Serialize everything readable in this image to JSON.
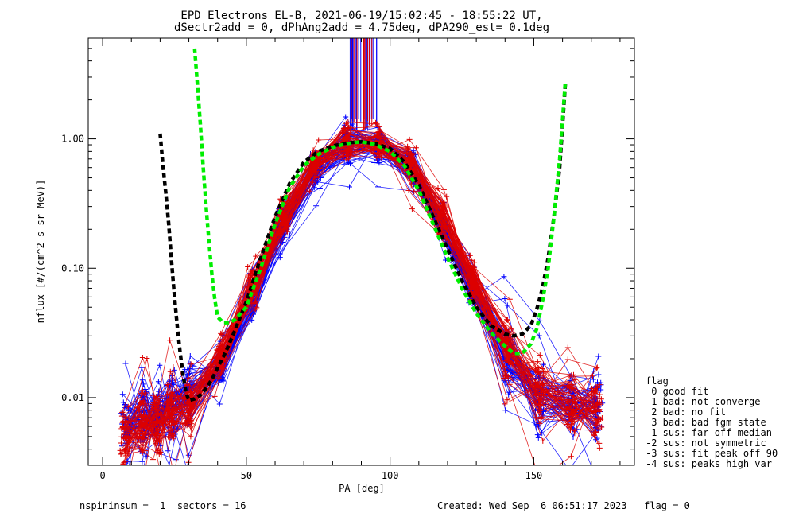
{
  "chart_data": {
    "type": "line",
    "title": "EPD Electrons EL-B, 2021-06-19/15:02:45 - 18:55:22 UT,",
    "subtitle": "dSectr2add = 0, dPhAng2add = 4.75deg, dPA290_est=   0.1deg",
    "xlabel": "PA [deg]",
    "ylabel": "nflux [#/(cm^2 s sr MeV)]",
    "xlim": [
      -5,
      185
    ],
    "ylim": [
      0.003,
      6.0
    ],
    "yscale": "log",
    "x_ticks": [
      0,
      50,
      100,
      150
    ],
    "x_tick_labels": [
      "0",
      "50",
      "100",
      "150"
    ],
    "y_ticks": [
      0.01,
      0.1,
      1.0
    ],
    "y_tick_labels": [
      "0.01",
      "0.10",
      "1.00"
    ],
    "colors": {
      "red": "#dd0000",
      "blue": "#0000ff",
      "black": "#000000",
      "green": "#00ee00"
    },
    "series": [
      {
        "color": "blue",
        "marker": "plus",
        "style": "thin",
        "profile": {
          "x": [
            8,
            14,
            19,
            24,
            30,
            41,
            52,
            63,
            74,
            85,
            96,
            107,
            118,
            129,
            141,
            152,
            163,
            172
          ],
          "y": [
            0.0055,
            0.0068,
            0.0072,
            0.0085,
            0.0105,
            0.018,
            0.06,
            0.22,
            0.6,
            0.9,
            0.9,
            0.6,
            0.22,
            0.07,
            0.02,
            0.01,
            0.009,
            0.008
          ]
        }
      },
      {
        "color": "red",
        "marker": "plus",
        "style": "thin",
        "profile": {
          "x": [
            8,
            14,
            19,
            24,
            30,
            41,
            52,
            63,
            74,
            85,
            96,
            107,
            118,
            129,
            141,
            152,
            163,
            172
          ],
          "y": [
            0.005,
            0.006,
            0.0065,
            0.0075,
            0.0095,
            0.02,
            0.07,
            0.25,
            0.65,
            0.95,
            0.92,
            0.65,
            0.25,
            0.08,
            0.025,
            0.011,
            0.009,
            0.008
          ]
        }
      },
      {
        "color": "black",
        "style": "thick-dashed",
        "x": [
          20,
          21,
          22,
          23,
          24,
          25,
          26,
          27,
          28,
          29,
          30,
          32,
          34,
          36,
          38,
          40,
          43,
          46,
          50,
          55,
          60,
          65,
          70,
          75,
          80,
          85,
          90,
          95,
          100,
          105,
          110,
          115,
          120,
          125,
          130,
          135,
          140,
          143,
          146,
          149,
          151,
          153,
          155,
          157,
          159,
          161
        ],
        "y": [
          1.1,
          0.62,
          0.38,
          0.22,
          0.11,
          0.06,
          0.035,
          0.022,
          0.015,
          0.011,
          0.0095,
          0.0098,
          0.0105,
          0.0118,
          0.0138,
          0.017,
          0.023,
          0.033,
          0.055,
          0.12,
          0.25,
          0.45,
          0.66,
          0.8,
          0.88,
          0.93,
          0.95,
          0.92,
          0.84,
          0.66,
          0.44,
          0.25,
          0.14,
          0.08,
          0.05,
          0.036,
          0.031,
          0.03,
          0.031,
          0.036,
          0.048,
          0.07,
          0.12,
          0.25,
          0.6,
          2.7
        ]
      },
      {
        "color": "green",
        "style": "thick-dashed",
        "x": [
          32,
          33,
          34,
          35,
          36,
          37,
          38,
          39,
          40,
          42,
          44,
          46,
          50,
          55,
          60,
          65,
          70,
          75,
          80,
          85,
          90,
          95,
          100,
          105,
          110,
          115,
          120,
          125,
          130,
          135,
          140,
          143,
          146,
          149,
          151,
          153,
          155,
          157,
          159,
          161
        ],
        "y": [
          5.0,
          2.6,
          1.3,
          0.6,
          0.3,
          0.16,
          0.09,
          0.058,
          0.042,
          0.038,
          0.038,
          0.04,
          0.05,
          0.1,
          0.22,
          0.42,
          0.62,
          0.76,
          0.86,
          0.92,
          0.95,
          0.9,
          0.8,
          0.62,
          0.4,
          0.22,
          0.12,
          0.07,
          0.045,
          0.032,
          0.025,
          0.022,
          0.022,
          0.026,
          0.034,
          0.055,
          0.1,
          0.25,
          0.7,
          2.8
        ]
      }
    ]
  },
  "legend": {
    "title": "flag",
    "items": [
      " 0 good fit",
      " 1 bad: not converge",
      " 2 bad: no fit",
      " 3 bad: bad fgm state",
      "-1 sus: far off median",
      "-2 sus: not symmetric",
      "-3 sus: fit peak off 90",
      "-4 sus: peaks high var"
    ]
  },
  "footer": {
    "left": "nspininsum =  1  sectors = 16",
    "right": "Created: Wed Sep  6 06:51:17 2023   flag = 0"
  }
}
